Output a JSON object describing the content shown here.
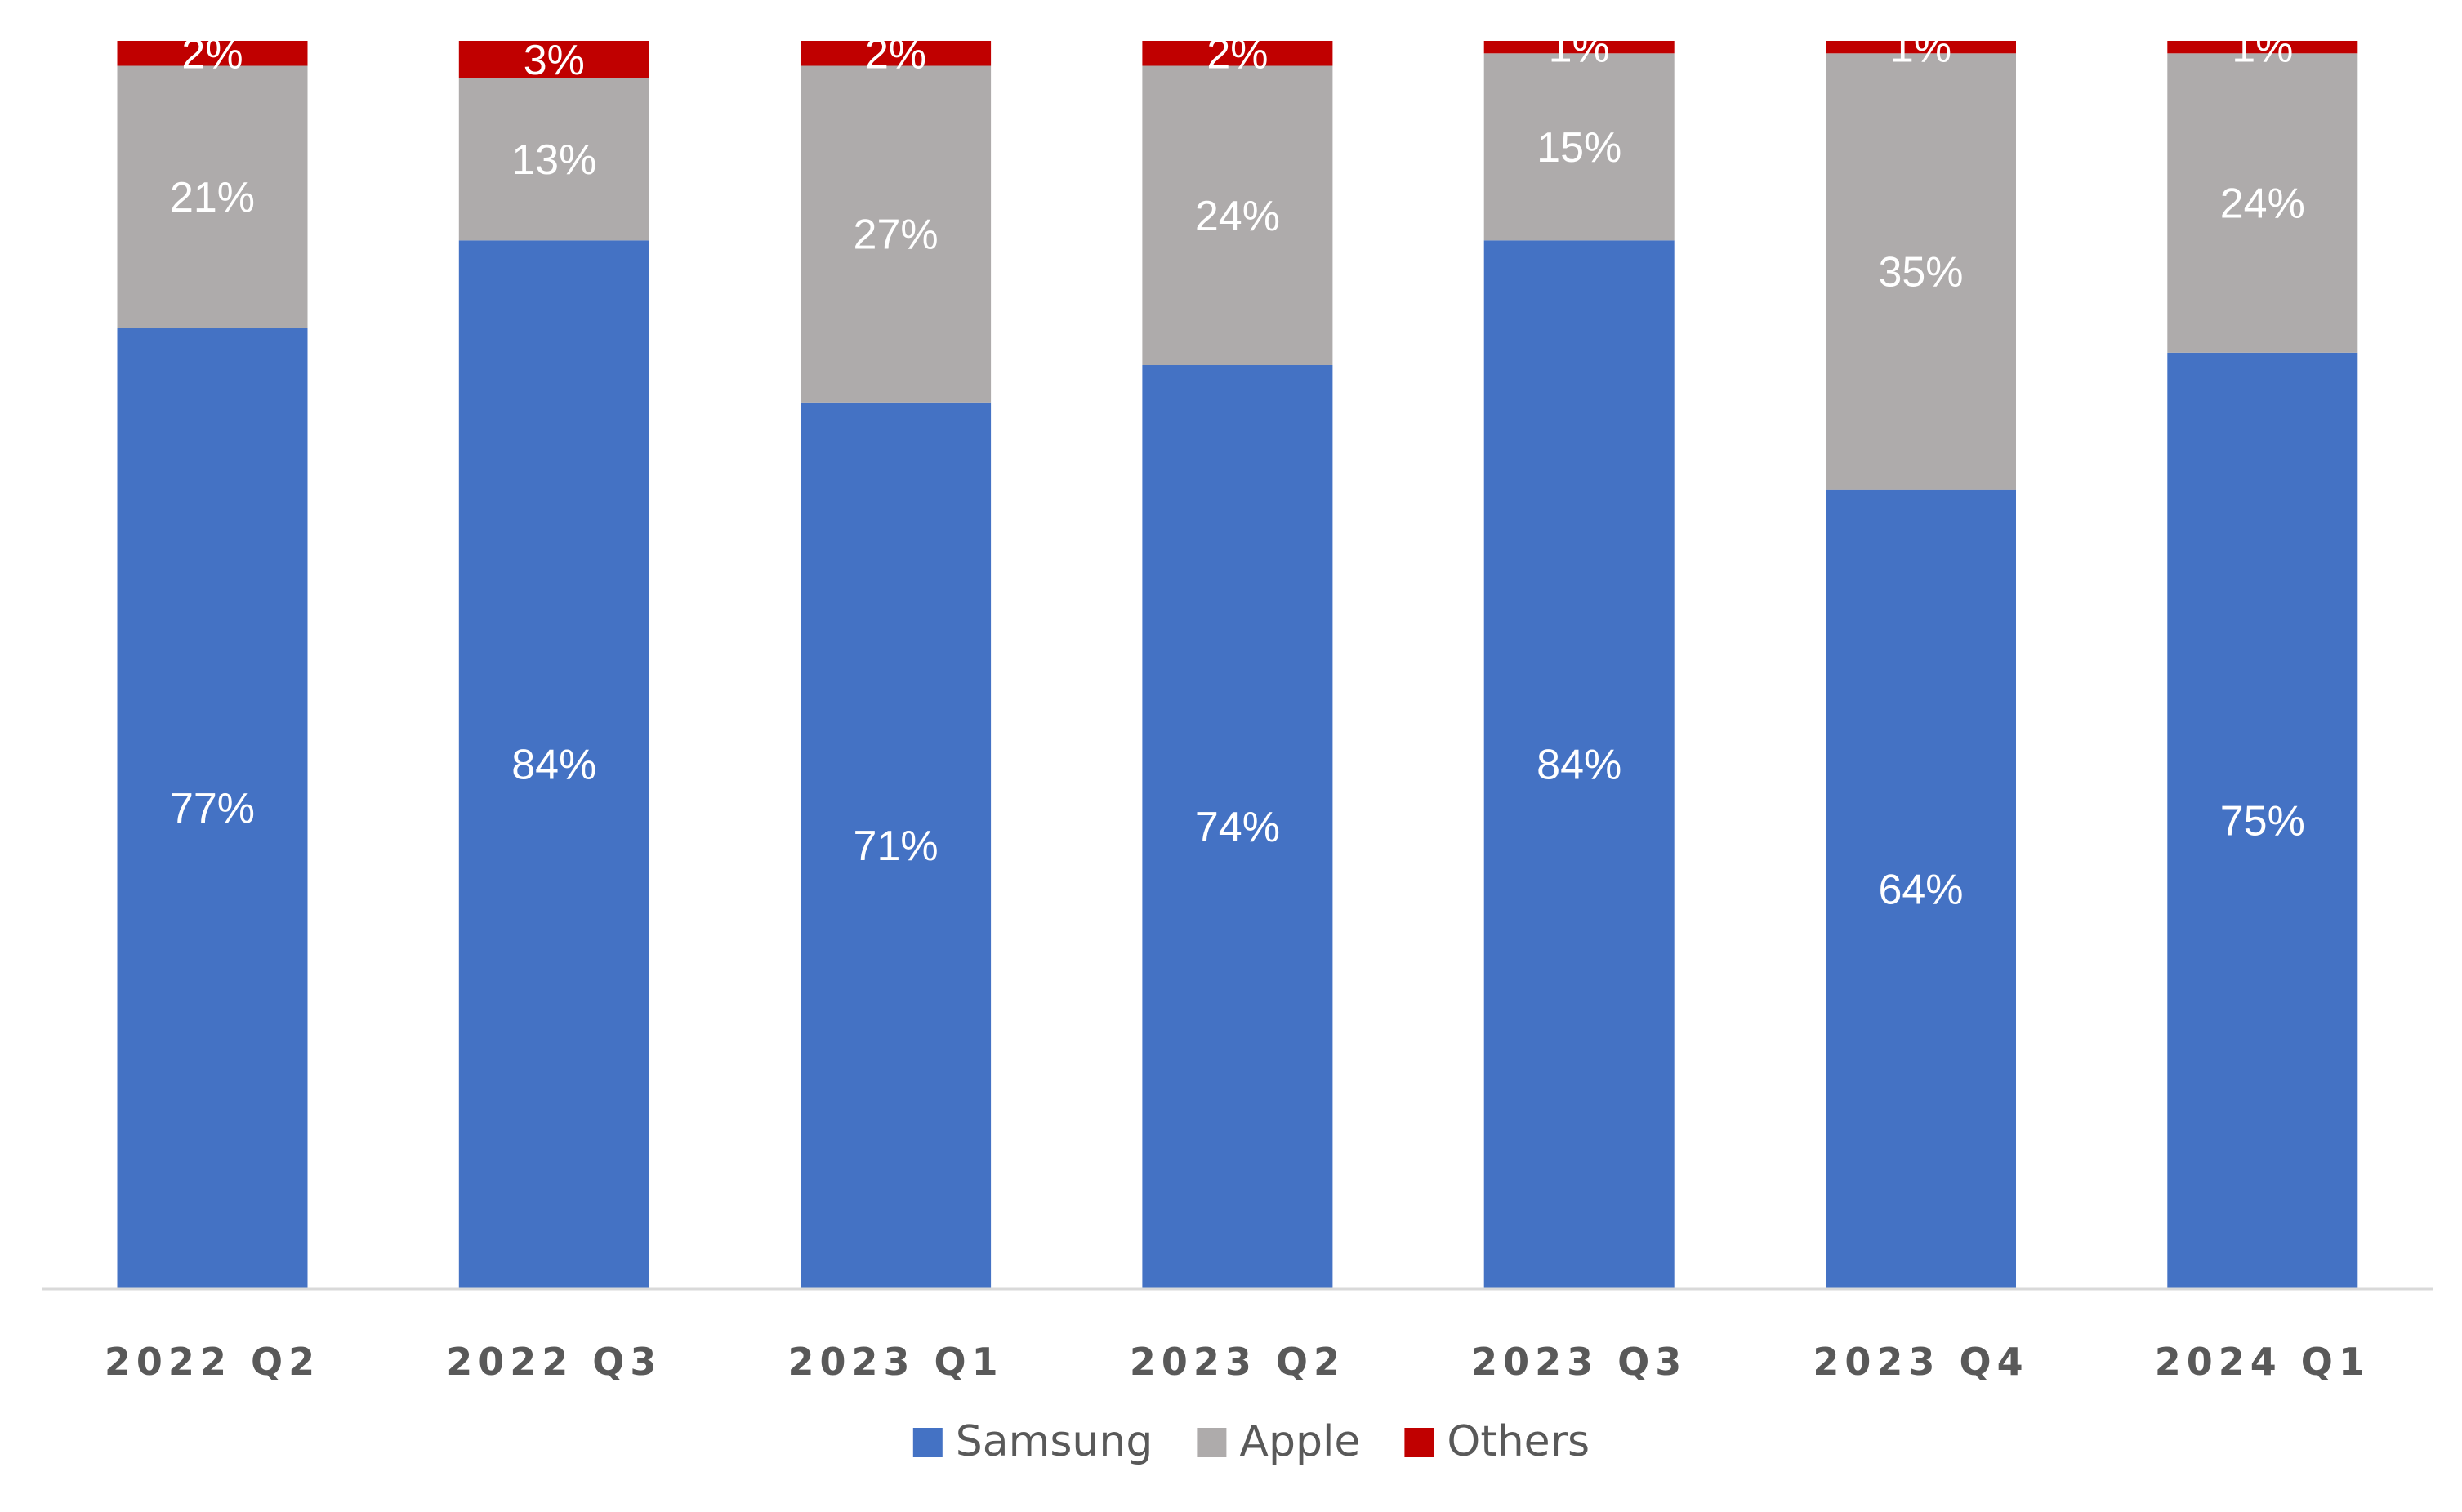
{
  "chart_data": {
    "type": "bar",
    "stacked": true,
    "title": "",
    "xlabel": "",
    "ylabel": "",
    "ylim": [
      0,
      100
    ],
    "grid": false,
    "legend_position": "bottom",
    "categories": [
      "2022 Q2",
      "2022 Q3",
      "2023 Q1",
      "2023 Q2",
      "2023 Q3",
      "2023 Q4",
      "2024 Q1"
    ],
    "series": [
      {
        "name": "Samsung",
        "color": "#4472C4",
        "values": [
          77,
          84,
          71,
          74,
          84,
          64,
          75
        ],
        "labels": [
          "77%",
          "84%",
          "71%",
          "74%",
          "84%",
          "64%",
          "75%"
        ]
      },
      {
        "name": "Apple",
        "color": "#AEABAB",
        "values": [
          21,
          13,
          27,
          24,
          15,
          35,
          24
        ],
        "labels": [
          "21%",
          "13%",
          "27%",
          "24%",
          "15%",
          "35%",
          "24%"
        ]
      },
      {
        "name": "Others",
        "color": "#C00000",
        "values": [
          2,
          3,
          2,
          2,
          1,
          1,
          1
        ],
        "labels": [
          "2%",
          "3%",
          "2%",
          "2%",
          "1%",
          "1%",
          "1%"
        ]
      }
    ]
  }
}
